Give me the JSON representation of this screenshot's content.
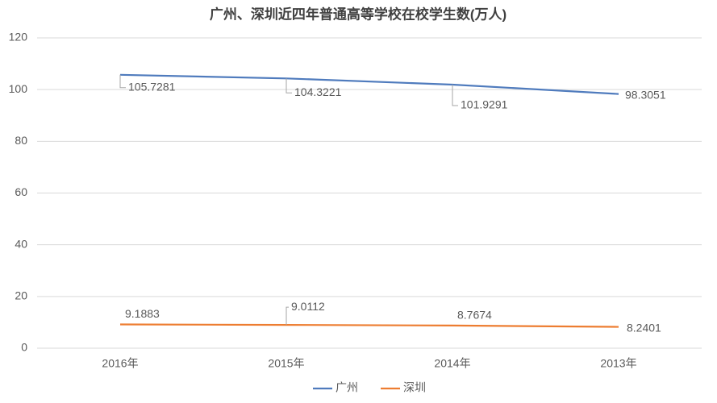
{
  "chart_data": {
    "type": "line",
    "title": "广州、深圳近四年普通高等学校在校学生数(万人)",
    "categories": [
      "2016年",
      "2015年",
      "2014年",
      "2013年"
    ],
    "series": [
      {
        "name": "广州",
        "color": "#4f7bbd",
        "values": [
          105.7281,
          104.3221,
          101.9291,
          98.3051
        ]
      },
      {
        "name": "深圳",
        "color": "#ed7d31",
        "values": [
          9.1883,
          9.0112,
          8.7674,
          8.2401
        ]
      }
    ],
    "ylim": [
      0,
      120
    ],
    "yticks": [
      0,
      20,
      40,
      60,
      80,
      100,
      120
    ],
    "grid": true,
    "legend": "bottom"
  }
}
